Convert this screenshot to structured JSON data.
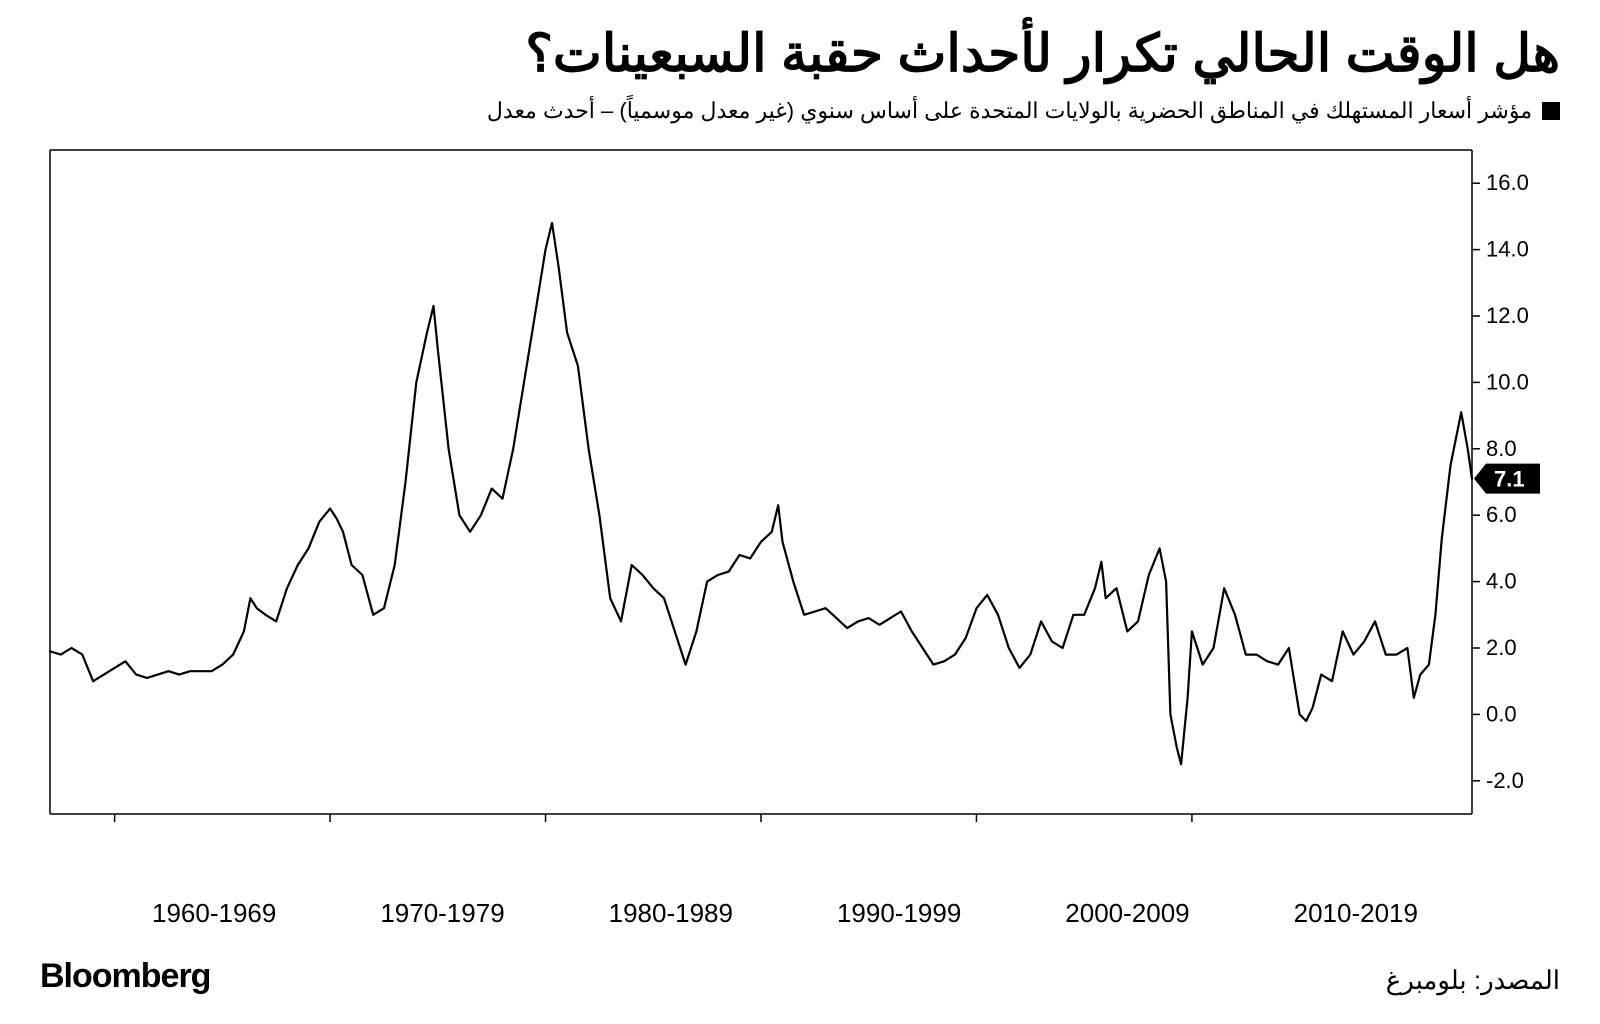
{
  "title": "هل الوقت الحالي تكرار لأحداث حقبة السبعينات؟",
  "legend_text": "مؤشر أسعار المستهلك في المناطق الحضرية بالولايات المتحدة على أساس سنوي (غير معدل موسمياً) – أحدث معدل",
  "source": "المصدر: بلومبرغ",
  "brand": "Bloomberg",
  "chart": {
    "type": "line",
    "line_color": "#000000",
    "line_width": 2.2,
    "background_color": "#ffffff",
    "border_color": "#000000",
    "tick_color": "#000000",
    "ylim": [
      -3,
      17
    ],
    "yticks": [
      -2.0,
      0.0,
      2.0,
      4.0,
      6.0,
      8.0,
      10.0,
      12.0,
      14.0,
      16.0
    ],
    "ytick_labels": [
      "-2.0",
      "0.0",
      "2.0",
      "4.0",
      "6.0",
      "8.0",
      "10.0",
      "12.0",
      "14.0",
      "16.0"
    ],
    "xlim": [
      1957,
      2023
    ],
    "x_decade_starts": [
      1960,
      1970,
      1980,
      1990,
      2000,
      2010
    ],
    "x_decade_labels": [
      "1960-1969",
      "1970-1979",
      "1980-1989",
      "1990-1999",
      "2000-2009",
      "2010-2019"
    ],
    "latest_value": 7.1,
    "latest_label": "7.1",
    "font_size_axis": 22,
    "series": [
      [
        1957.0,
        1.9
      ],
      [
        1957.5,
        1.8
      ],
      [
        1958.0,
        2.0
      ],
      [
        1958.5,
        1.8
      ],
      [
        1959.0,
        1.0
      ],
      [
        1959.5,
        1.2
      ],
      [
        1960.0,
        1.4
      ],
      [
        1960.5,
        1.6
      ],
      [
        1961.0,
        1.2
      ],
      [
        1961.5,
        1.1
      ],
      [
        1962.0,
        1.2
      ],
      [
        1962.5,
        1.3
      ],
      [
        1963.0,
        1.2
      ],
      [
        1963.5,
        1.3
      ],
      [
        1964.0,
        1.3
      ],
      [
        1964.5,
        1.3
      ],
      [
        1965.0,
        1.5
      ],
      [
        1965.5,
        1.8
      ],
      [
        1966.0,
        2.5
      ],
      [
        1966.3,
        3.5
      ],
      [
        1966.6,
        3.2
      ],
      [
        1967.0,
        3.0
      ],
      [
        1967.5,
        2.8
      ],
      [
        1968.0,
        3.8
      ],
      [
        1968.5,
        4.5
      ],
      [
        1969.0,
        5.0
      ],
      [
        1969.5,
        5.8
      ],
      [
        1970.0,
        6.2
      ],
      [
        1970.3,
        5.9
      ],
      [
        1970.6,
        5.5
      ],
      [
        1971.0,
        4.5
      ],
      [
        1971.5,
        4.2
      ],
      [
        1972.0,
        3.0
      ],
      [
        1972.5,
        3.2
      ],
      [
        1973.0,
        4.5
      ],
      [
        1973.5,
        7.0
      ],
      [
        1974.0,
        10.0
      ],
      [
        1974.5,
        11.5
      ],
      [
        1974.8,
        12.3
      ],
      [
        1975.0,
        11.0
      ],
      [
        1975.5,
        8.0
      ],
      [
        1976.0,
        6.0
      ],
      [
        1976.5,
        5.5
      ],
      [
        1977.0,
        6.0
      ],
      [
        1977.5,
        6.8
      ],
      [
        1978.0,
        6.5
      ],
      [
        1978.5,
        8.0
      ],
      [
        1979.0,
        10.0
      ],
      [
        1979.5,
        12.0
      ],
      [
        1980.0,
        14.0
      ],
      [
        1980.3,
        14.8
      ],
      [
        1980.6,
        13.5
      ],
      [
        1981.0,
        11.5
      ],
      [
        1981.5,
        10.5
      ],
      [
        1982.0,
        8.0
      ],
      [
        1982.5,
        6.0
      ],
      [
        1983.0,
        3.5
      ],
      [
        1983.5,
        2.8
      ],
      [
        1984.0,
        4.5
      ],
      [
        1984.5,
        4.2
      ],
      [
        1985.0,
        3.8
      ],
      [
        1985.5,
        3.5
      ],
      [
        1986.0,
        2.5
      ],
      [
        1986.5,
        1.5
      ],
      [
        1987.0,
        2.5
      ],
      [
        1987.5,
        4.0
      ],
      [
        1988.0,
        4.2
      ],
      [
        1988.5,
        4.3
      ],
      [
        1989.0,
        4.8
      ],
      [
        1989.5,
        4.7
      ],
      [
        1990.0,
        5.2
      ],
      [
        1990.5,
        5.5
      ],
      [
        1990.8,
        6.3
      ],
      [
        1991.0,
        5.2
      ],
      [
        1991.5,
        4.0
      ],
      [
        1992.0,
        3.0
      ],
      [
        1992.5,
        3.1
      ],
      [
        1993.0,
        3.2
      ],
      [
        1993.5,
        2.9
      ],
      [
        1994.0,
        2.6
      ],
      [
        1994.5,
        2.8
      ],
      [
        1995.0,
        2.9
      ],
      [
        1995.5,
        2.7
      ],
      [
        1996.0,
        2.9
      ],
      [
        1996.5,
        3.1
      ],
      [
        1997.0,
        2.5
      ],
      [
        1997.5,
        2.0
      ],
      [
        1998.0,
        1.5
      ],
      [
        1998.5,
        1.6
      ],
      [
        1999.0,
        1.8
      ],
      [
        1999.5,
        2.3
      ],
      [
        2000.0,
        3.2
      ],
      [
        2000.5,
        3.6
      ],
      [
        2001.0,
        3.0
      ],
      [
        2001.5,
        2.0
      ],
      [
        2002.0,
        1.4
      ],
      [
        2002.5,
        1.8
      ],
      [
        2003.0,
        2.8
      ],
      [
        2003.5,
        2.2
      ],
      [
        2004.0,
        2.0
      ],
      [
        2004.5,
        3.0
      ],
      [
        2005.0,
        3.0
      ],
      [
        2005.5,
        3.8
      ],
      [
        2005.8,
        4.6
      ],
      [
        2006.0,
        3.5
      ],
      [
        2006.5,
        3.8
      ],
      [
        2007.0,
        2.5
      ],
      [
        2007.5,
        2.8
      ],
      [
        2008.0,
        4.2
      ],
      [
        2008.5,
        5.0
      ],
      [
        2008.8,
        4.0
      ],
      [
        2009.0,
        0.0
      ],
      [
        2009.3,
        -1.0
      ],
      [
        2009.5,
        -1.5
      ],
      [
        2009.8,
        0.5
      ],
      [
        2010.0,
        2.5
      ],
      [
        2010.5,
        1.5
      ],
      [
        2011.0,
        2.0
      ],
      [
        2011.5,
        3.8
      ],
      [
        2012.0,
        3.0
      ],
      [
        2012.5,
        1.8
      ],
      [
        2013.0,
        1.8
      ],
      [
        2013.5,
        1.6
      ],
      [
        2014.0,
        1.5
      ],
      [
        2014.5,
        2.0
      ],
      [
        2015.0,
        0.0
      ],
      [
        2015.3,
        -0.2
      ],
      [
        2015.6,
        0.2
      ],
      [
        2016.0,
        1.2
      ],
      [
        2016.5,
        1.0
      ],
      [
        2017.0,
        2.5
      ],
      [
        2017.5,
        1.8
      ],
      [
        2018.0,
        2.2
      ],
      [
        2018.5,
        2.8
      ],
      [
        2019.0,
        1.8
      ],
      [
        2019.5,
        1.8
      ],
      [
        2020.0,
        2.0
      ],
      [
        2020.3,
        0.5
      ],
      [
        2020.6,
        1.2
      ],
      [
        2021.0,
        1.5
      ],
      [
        2021.3,
        3.0
      ],
      [
        2021.6,
        5.3
      ],
      [
        2022.0,
        7.5
      ],
      [
        2022.5,
        9.1
      ],
      [
        2022.8,
        8.0
      ],
      [
        2023.0,
        7.1
      ]
    ]
  }
}
